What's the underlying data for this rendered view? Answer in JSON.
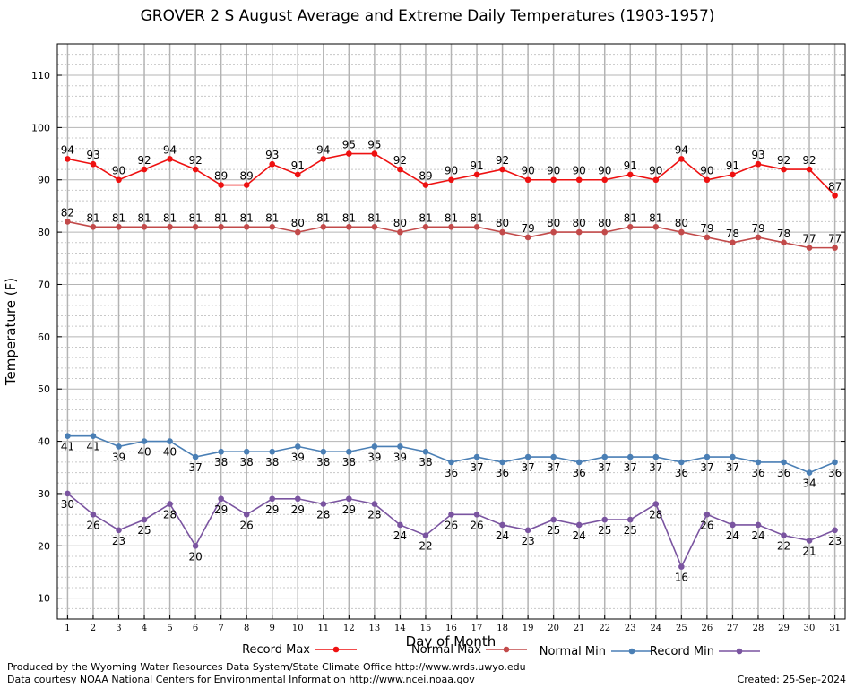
{
  "chart_data": {
    "type": "line",
    "title": "GROVER 2 S August Average and Extreme Daily Temperatures (1903-1957)",
    "xlabel": "Day of Month",
    "ylabel": "Temperature (F)",
    "x": [
      1,
      2,
      3,
      4,
      5,
      6,
      7,
      8,
      9,
      10,
      11,
      12,
      13,
      14,
      15,
      16,
      17,
      18,
      19,
      20,
      21,
      22,
      23,
      24,
      25,
      26,
      27,
      28,
      29,
      30,
      31
    ],
    "xlim": [
      0.6,
      31.4
    ],
    "ylim": [
      6,
      116
    ],
    "yticks": [
      10,
      20,
      30,
      40,
      50,
      60,
      70,
      80,
      90,
      100,
      110
    ],
    "grid": true,
    "legend_position": "bottom",
    "series": [
      {
        "name": "Record Max",
        "color": "#ee1111",
        "values": [
          94,
          93,
          90,
          92,
          94,
          92,
          89,
          89,
          93,
          91,
          94,
          95,
          95,
          92,
          89,
          90,
          91,
          92,
          90,
          90,
          90,
          90,
          91,
          90,
          94,
          90,
          91,
          93,
          92,
          92,
          87
        ]
      },
      {
        "name": "Normal Max",
        "color": "#c24a4a",
        "values": [
          82,
          81,
          81,
          81,
          81,
          81,
          81,
          81,
          81,
          80,
          81,
          81,
          81,
          80,
          81,
          81,
          81,
          80,
          79,
          80,
          80,
          80,
          81,
          81,
          80,
          79,
          78,
          79,
          78,
          77,
          77
        ]
      },
      {
        "name": "Normal Min",
        "color": "#4a7fb5",
        "values": [
          41,
          41,
          39,
          40,
          40,
          37,
          38,
          38,
          38,
          39,
          38,
          38,
          39,
          39,
          38,
          36,
          37,
          36,
          37,
          37,
          36,
          37,
          37,
          37,
          36,
          37,
          37,
          36,
          36,
          34,
          36
        ]
      },
      {
        "name": "Record Min",
        "color": "#7a54a0",
        "values": [
          30,
          26,
          23,
          25,
          28,
          20,
          29,
          26,
          29,
          29,
          28,
          29,
          28,
          24,
          22,
          26,
          26,
          24,
          23,
          25,
          24,
          25,
          25,
          28,
          16,
          26,
          24,
          24,
          22,
          21,
          23
        ]
      }
    ]
  },
  "footer": {
    "credit_1": "Produced by the Wyoming Water Resources Data System/State Climate Office http://www.wrds.uwyo.edu",
    "credit_2": "Data courtesy NOAA National Centers for Environmental Information http://www.ncei.noaa.gov",
    "created": "Created:  25-Sep-2024"
  }
}
